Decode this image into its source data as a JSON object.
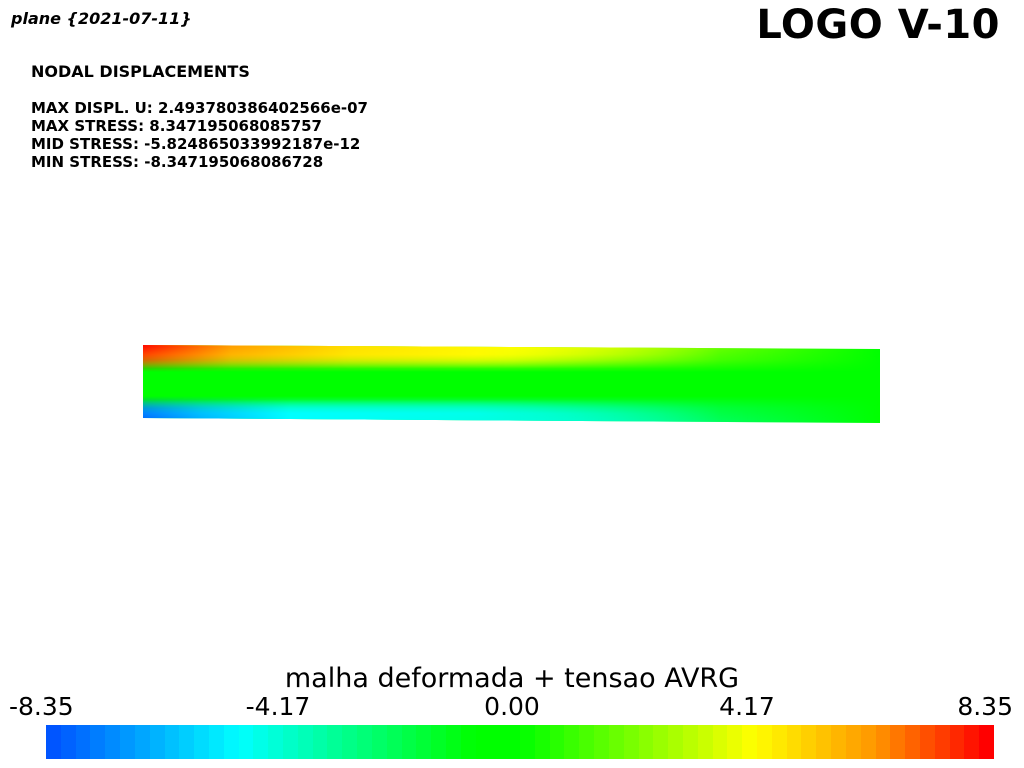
{
  "header": {
    "subtitle": "plane {2021-07-11}",
    "logo": "LOGO V-10"
  },
  "info": {
    "title": "NODAL DISPLACEMENTS",
    "lines": [
      "MAX DISPL. U: 2.493780386402566e-07",
      "MAX STRESS: 8.347195068085757",
      "MID STRESS: -5.824865033992187e-12",
      "MIN STRESS: -8.347195068086728"
    ]
  },
  "colorbar": {
    "title": "malha deformada + tensao AVRG",
    "labels": [
      "-8.35",
      "-4.17",
      "0.00",
      "4.17",
      "8.35"
    ],
    "min": -8.35,
    "max": 8.35,
    "steps": 64,
    "colormap": "jet"
  },
  "colors": {
    "background": "#ffffff",
    "text": "#000000",
    "stress_min": "#0055ff",
    "stress_mid": "#00ff00",
    "stress_max": "#ff0000"
  }
}
